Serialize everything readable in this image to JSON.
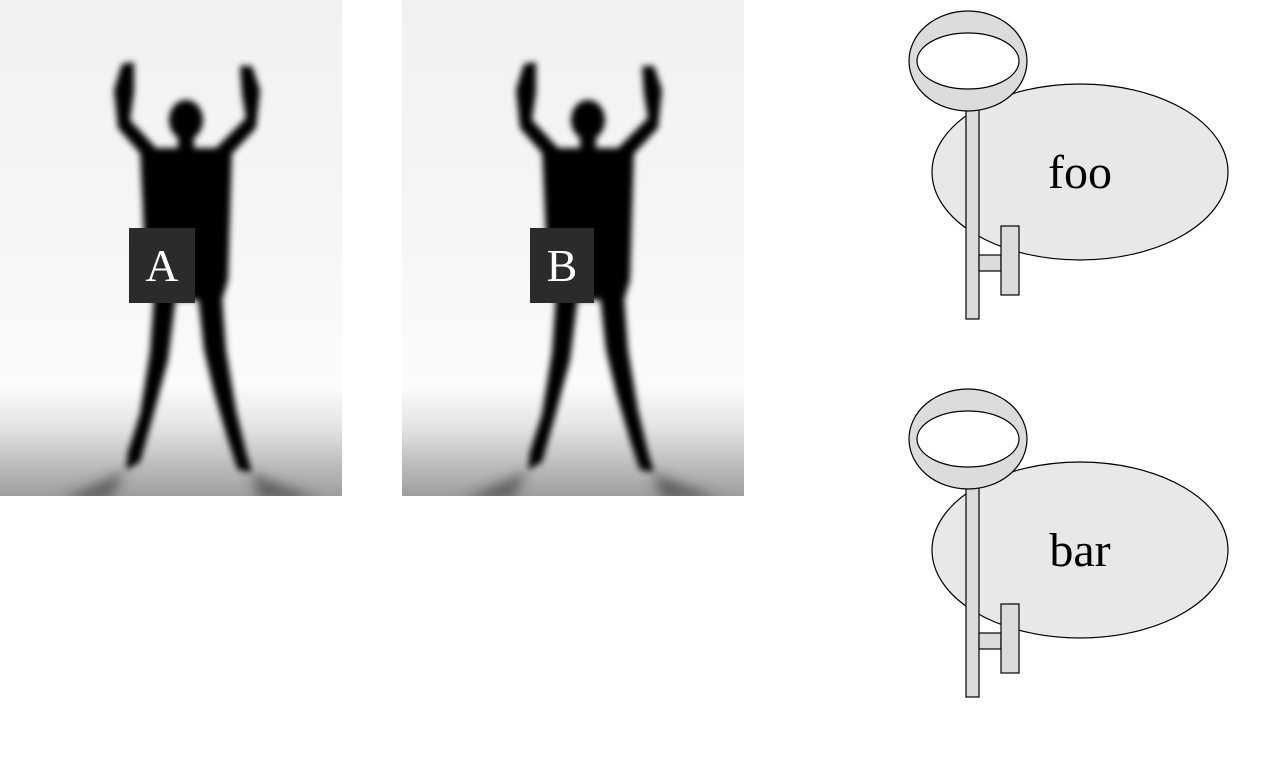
{
  "photos": [
    {
      "label": "A"
    },
    {
      "label": "B"
    }
  ],
  "tags": [
    {
      "label": "foo"
    },
    {
      "label": "bar"
    }
  ],
  "colors": {
    "label_box": "#2b2b2b",
    "tag_fill": "#e8e8e8",
    "key_fill": "#dcdcdc",
    "silhouette": "#050505"
  }
}
